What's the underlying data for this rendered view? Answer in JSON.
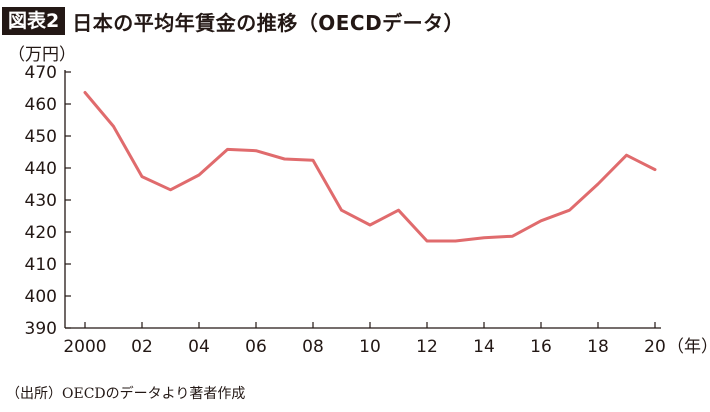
{
  "figure": {
    "label": "図表2",
    "title": "日本の平均年賃金の推移（OECDデータ）",
    "unit": "（万円）",
    "source": "（出所）OECDのデータより著者作成"
  },
  "colors": {
    "line": "#e06b6d",
    "axis": "#231815",
    "label_bg": "#231815"
  },
  "chart_data": {
    "type": "line",
    "title": "日本の平均年賃金の推移（OECDデータ）",
    "ylabel": "（万円）",
    "xlabel": "（年）",
    "x": [
      2000,
      2001,
      2002,
      2003,
      2004,
      2005,
      2006,
      2007,
      2008,
      2009,
      2010,
      2011,
      2012,
      2013,
      2014,
      2015,
      2016,
      2017,
      2018,
      2019,
      2020
    ],
    "series": [
      {
        "values": [
          463.6,
          453.0,
          437.3,
          433.2,
          437.8,
          445.8,
          445.4,
          442.8,
          442.4,
          426.8,
          422.2,
          426.8,
          417.2,
          417.2,
          418.2,
          418.7,
          423.5,
          426.8,
          435.0,
          444.0,
          439.5
        ]
      }
    ],
    "ylim": [
      390,
      470
    ],
    "yticks": [
      "390",
      "400",
      "410",
      "420",
      "430",
      "440",
      "450",
      "460",
      "470"
    ],
    "xlim": [
      2000,
      2020
    ],
    "xticks": [
      {
        "x": 2000,
        "label": "2000"
      },
      {
        "x": 2002,
        "label": "02"
      },
      {
        "x": 2004,
        "label": "04"
      },
      {
        "x": 2006,
        "label": "06"
      },
      {
        "x": 2008,
        "label": "08"
      },
      {
        "x": 2010,
        "label": "10"
      },
      {
        "x": 2012,
        "label": "12"
      },
      {
        "x": 2014,
        "label": "14"
      },
      {
        "x": 2016,
        "label": "16"
      },
      {
        "x": 2018,
        "label": "18"
      },
      {
        "x": 2020,
        "label": "20"
      }
    ],
    "grid": false
  }
}
